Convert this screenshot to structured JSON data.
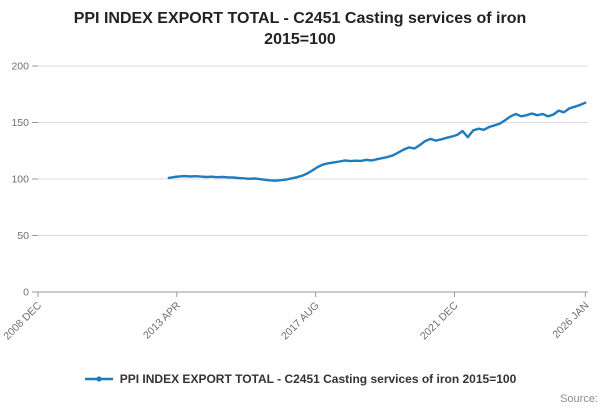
{
  "title": {
    "line1": "PPI INDEX EXPORT TOTAL - C2451 Casting services of iron",
    "line2": "2015=100"
  },
  "legend_label": "PPI INDEX EXPORT TOTAL - C2451 Casting services of iron 2015=100",
  "source_label": "Source:",
  "colors": {
    "line": "#1d7cbf",
    "grid": "#dcdcdc",
    "axis": "#9a9a9a",
    "tick": "#6f6f6f",
    "title_text": "#222222",
    "legend_text": "#333333",
    "source_text": "#8c8c8c"
  },
  "chart_data": {
    "type": "line",
    "title": "PPI INDEX EXPORT TOTAL - C2451 Casting services of iron 2015=100",
    "xlabel": "",
    "ylabel": "",
    "x_range": [
      2008.917,
      2026.083
    ],
    "ylim": [
      0,
      200
    ],
    "y_ticks": [
      0,
      50,
      100,
      150,
      200
    ],
    "x_ticks": [
      {
        "t": 2008.917,
        "label": "2008 DEC"
      },
      {
        "t": 2013.25,
        "label": "2013 APR"
      },
      {
        "t": 2017.583,
        "label": "2017 AUG"
      },
      {
        "t": 2021.917,
        "label": "2021 DEC"
      },
      {
        "t": 2026.0,
        "label": "2026 JAN"
      }
    ],
    "grid": true,
    "legend_position": "bottom",
    "series": [
      {
        "name": "PPI INDEX EXPORT TOTAL - C2451 Casting services of iron 2015=100",
        "points": [
          [
            2013.0,
            101.0
          ],
          [
            2013.17,
            101.8
          ],
          [
            2013.33,
            102.3
          ],
          [
            2013.5,
            102.6
          ],
          [
            2013.67,
            102.2
          ],
          [
            2013.83,
            102.5
          ],
          [
            2014.0,
            102.1
          ],
          [
            2014.17,
            101.8
          ],
          [
            2014.33,
            102.0
          ],
          [
            2014.5,
            101.6
          ],
          [
            2014.67,
            101.9
          ],
          [
            2014.83,
            101.5
          ],
          [
            2015.0,
            101.3
          ],
          [
            2015.17,
            100.9
          ],
          [
            2015.33,
            100.6
          ],
          [
            2015.5,
            100.2
          ],
          [
            2015.67,
            100.4
          ],
          [
            2015.83,
            99.9
          ],
          [
            2016.0,
            99.3
          ],
          [
            2016.17,
            98.8
          ],
          [
            2016.33,
            98.5
          ],
          [
            2016.5,
            98.9
          ],
          [
            2016.67,
            99.6
          ],
          [
            2016.83,
            100.5
          ],
          [
            2017.0,
            101.6
          ],
          [
            2017.17,
            103.0
          ],
          [
            2017.33,
            105.0
          ],
          [
            2017.5,
            108.0
          ],
          [
            2017.67,
            111.0
          ],
          [
            2017.83,
            113.0
          ],
          [
            2018.0,
            114.0
          ],
          [
            2018.17,
            114.8
          ],
          [
            2018.33,
            115.5
          ],
          [
            2018.5,
            116.5
          ],
          [
            2018.67,
            115.8
          ],
          [
            2018.83,
            116.2
          ],
          [
            2019.0,
            116.0
          ],
          [
            2019.17,
            117.0
          ],
          [
            2019.33,
            116.4
          ],
          [
            2019.5,
            117.5
          ],
          [
            2019.67,
            118.5
          ],
          [
            2019.83,
            119.5
          ],
          [
            2020.0,
            121.0
          ],
          [
            2020.17,
            123.5
          ],
          [
            2020.33,
            126.0
          ],
          [
            2020.5,
            128.0
          ],
          [
            2020.67,
            127.0
          ],
          [
            2020.83,
            130.0
          ],
          [
            2021.0,
            133.5
          ],
          [
            2021.17,
            135.5
          ],
          [
            2021.33,
            134.0
          ],
          [
            2021.5,
            135.0
          ],
          [
            2021.67,
            136.5
          ],
          [
            2021.83,
            137.5
          ],
          [
            2022.0,
            139.0
          ],
          [
            2022.17,
            142.5
          ],
          [
            2022.33,
            137.0
          ],
          [
            2022.5,
            143.0
          ],
          [
            2022.67,
            144.5
          ],
          [
            2022.83,
            143.5
          ],
          [
            2023.0,
            146.0
          ],
          [
            2023.17,
            147.5
          ],
          [
            2023.33,
            149.0
          ],
          [
            2023.5,
            152.0
          ],
          [
            2023.67,
            155.5
          ],
          [
            2023.83,
            157.5
          ],
          [
            2024.0,
            155.5
          ],
          [
            2024.17,
            156.5
          ],
          [
            2024.33,
            158.0
          ],
          [
            2024.5,
            156.5
          ],
          [
            2024.67,
            157.5
          ],
          [
            2024.83,
            155.5
          ],
          [
            2025.0,
            157.0
          ],
          [
            2025.17,
            160.5
          ],
          [
            2025.33,
            159.0
          ],
          [
            2025.5,
            162.5
          ],
          [
            2025.67,
            164.0
          ],
          [
            2025.83,
            165.5
          ],
          [
            2026.0,
            167.5
          ]
        ]
      }
    ]
  }
}
